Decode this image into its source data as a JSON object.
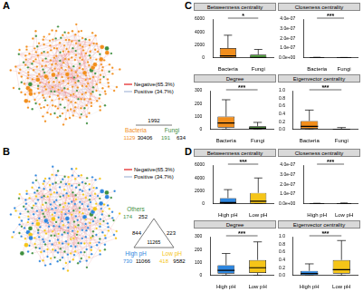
{
  "panel_labels": [
    "A",
    "B",
    "C",
    "D"
  ],
  "networks": [
    {
      "legend": [
        {
          "name": "Negative(65.3%)",
          "color": "#e31a1c"
        },
        {
          "name": "Positive (34.7%)",
          "color": "#a6b8d8"
        }
      ],
      "groups": [
        {
          "name": "Bacteria",
          "nodes": 1129,
          "edges": 30406,
          "color": "#f28e1c"
        },
        {
          "name": "Fungi",
          "nodes": 191,
          "edges": 634,
          "color": "#3f8f3f"
        }
      ],
      "links": [
        {
          "from": 0,
          "to": 1,
          "edges": 1992
        }
      ]
    },
    {
      "legend": [
        {
          "name": "Negative(65.3%)",
          "color": "#e31a1c"
        },
        {
          "name": "Positive (34.7%)",
          "color": "#a6b8d8"
        }
      ],
      "groups": [
        {
          "name": "Others",
          "nodes": 174,
          "edges": 252,
          "color": "#3f8f3f"
        },
        {
          "name": "High pH",
          "nodes": 730,
          "edges": 11066,
          "color": "#2e86de"
        },
        {
          "name": "Low pH",
          "nodes": 418,
          "edges": 9582,
          "color": "#f5c518"
        }
      ],
      "links": [
        {
          "from": 0,
          "to": 1,
          "edges": 844
        },
        {
          "from": 0,
          "to": 2,
          "edges": 223
        },
        {
          "from": 1,
          "to": 2,
          "edges": 11265
        }
      ]
    }
  ],
  "chart_data": [
    {
      "type": "boxplot",
      "panel": "C",
      "title": "Betweenness centrality",
      "categories": [
        "Bacteria",
        "Fungi"
      ],
      "colors": [
        "#f28e1c",
        "#5aab46"
      ],
      "boxes": [
        {
          "whislo": 0,
          "q1": 0,
          "median": 300,
          "q3": 1500,
          "whishi": 3500
        },
        {
          "whislo": 0,
          "q1": 0,
          "median": 50,
          "q3": 500,
          "whishi": 1300
        }
      ],
      "ylim": [
        0,
        6000
      ],
      "yticks": [
        0,
        2000,
        4000,
        6000
      ],
      "significance": "*"
    },
    {
      "type": "boxplot",
      "panel": "C",
      "title": "Closeness centrality",
      "categories": [
        "Bacteria",
        "Fungi"
      ],
      "colors": [
        "#f28e1c",
        "#5aab46"
      ],
      "boxes": [
        {
          "whislo": 0,
          "q1": 1e-09,
          "median": 2e-09,
          "q3": 3e-09,
          "whishi": 6e-09
        },
        {
          "whislo": 0,
          "q1": 5e-10,
          "median": 1e-09,
          "q3": 2e-09,
          "whishi": 4e-09
        }
      ],
      "ylim": [
        0,
        4e-07
      ],
      "yticks": [
        {
          "value": 0,
          "label": "0.0e+00"
        },
        {
          "value": 1e-07,
          "label": "1.0e-07"
        },
        {
          "value": 2e-07,
          "label": "2.0e-07"
        },
        {
          "value": 3e-07,
          "label": "3.0e-07"
        },
        {
          "value": 4e-07,
          "label": "4.0e-07"
        }
      ],
      "significance": "***"
    },
    {
      "type": "boxplot",
      "panel": "C",
      "title": "Degree",
      "categories": [
        "Bacteria",
        "Fungi"
      ],
      "colors": [
        "#f28e1c",
        "#5aab46"
      ],
      "boxes": [
        {
          "whislo": 1,
          "q1": 15,
          "median": 50,
          "q3": 100,
          "whishi": 230
        },
        {
          "whislo": 1,
          "q1": 5,
          "median": 10,
          "q3": 25,
          "whishi": 55
        }
      ],
      "ylim": [
        0,
        300
      ],
      "yticks": [
        0,
        100,
        200,
        300
      ],
      "significance": "***"
    },
    {
      "type": "boxplot",
      "panel": "C",
      "title": "Eigenvector centrality",
      "categories": [
        "Bacteria",
        "Fungi"
      ],
      "colors": [
        "#f28e1c",
        "#5aab46"
      ],
      "boxes": [
        {
          "whislo": 0,
          "q1": 0.02,
          "median": 0.08,
          "q3": 0.22,
          "whishi": 0.5
        },
        {
          "whislo": 0,
          "q1": 0,
          "median": 0.005,
          "q3": 0.02,
          "whishi": 0.05
        }
      ],
      "ylim": [
        0,
        1
      ],
      "yticks": [
        {
          "value": 0,
          "label": "0.0"
        },
        {
          "value": 0.2,
          "label": "0.2"
        },
        {
          "value": 0.4,
          "label": "0.4"
        },
        {
          "value": 0.6,
          "label": "0.6"
        },
        {
          "value": 0.8,
          "label": "0.8"
        },
        {
          "value": 1,
          "label": "1.0"
        }
      ],
      "significance": "***"
    },
    {
      "type": "boxplot",
      "panel": "D",
      "title": "Betweenness centrality",
      "categories": [
        "High pH",
        "Low pH"
      ],
      "colors": [
        "#2e86de",
        "#f5c518"
      ],
      "boxes": [
        {
          "whislo": 0,
          "q1": 0,
          "median": 200,
          "q3": 900,
          "whishi": 2200
        },
        {
          "whislo": 0,
          "q1": 0,
          "median": 400,
          "q3": 1700,
          "whishi": 4000
        }
      ],
      "ylim": [
        0,
        6000
      ],
      "yticks": [
        0,
        2000,
        4000,
        6000
      ],
      "significance": "***"
    },
    {
      "type": "boxplot",
      "panel": "D",
      "title": "Closeness centrality",
      "categories": [
        "High pH",
        "Low pH"
      ],
      "colors": [
        "#2e86de",
        "#f5c518"
      ],
      "boxes": [
        {
          "whislo": 0,
          "q1": 1e-09,
          "median": 2e-09,
          "q3": 3e-09,
          "whishi": 6e-09
        },
        {
          "whislo": 0,
          "q1": 2e-09,
          "median": 3e-09,
          "q3": 5e-09,
          "whishi": 9e-09
        }
      ],
      "ylim": [
        0,
        4e-07
      ],
      "yticks": [
        {
          "value": 0,
          "label": "0.0e+00"
        },
        {
          "value": 1e-07,
          "label": "1.0e-07"
        },
        {
          "value": 2e-07,
          "label": "2.0e-07"
        },
        {
          "value": 3e-07,
          "label": "3.0e-07"
        },
        {
          "value": 4e-07,
          "label": "4.0e-07"
        }
      ],
      "significance": "***"
    },
    {
      "type": "boxplot",
      "panel": "D",
      "title": "Degree",
      "categories": [
        "High pH",
        "Low pH"
      ],
      "colors": [
        "#2e86de",
        "#f5c518"
      ],
      "boxes": [
        {
          "whislo": 1,
          "q1": 15,
          "median": 40,
          "q3": 80,
          "whishi": 170
        },
        {
          "whislo": 1,
          "q1": 20,
          "median": 60,
          "q3": 120,
          "whishi": 260
        }
      ],
      "ylim": [
        0,
        300
      ],
      "yticks": [
        0,
        100,
        200,
        300
      ],
      "significance": "***"
    },
    {
      "type": "boxplot",
      "panel": "D",
      "title": "Eigenvector centrality",
      "categories": [
        "High pH",
        "Low pH"
      ],
      "colors": [
        "#2e86de",
        "#f5c518"
      ],
      "boxes": [
        {
          "whislo": 0,
          "q1": 0.01,
          "median": 0.05,
          "q3": 0.12,
          "whishi": 0.3
        },
        {
          "whislo": 0,
          "q1": 0.05,
          "median": 0.15,
          "q3": 0.4,
          "whishi": 0.9
        }
      ],
      "ylim": [
        0,
        1
      ],
      "yticks": [
        {
          "value": 0,
          "label": "0.0"
        },
        {
          "value": 0.2,
          "label": "0.2"
        },
        {
          "value": 0.4,
          "label": "0.4"
        },
        {
          "value": 0.6,
          "label": "0.6"
        },
        {
          "value": 0.8,
          "label": "0.8"
        },
        {
          "value": 1,
          "label": "1.0"
        }
      ],
      "significance": "***"
    }
  ]
}
